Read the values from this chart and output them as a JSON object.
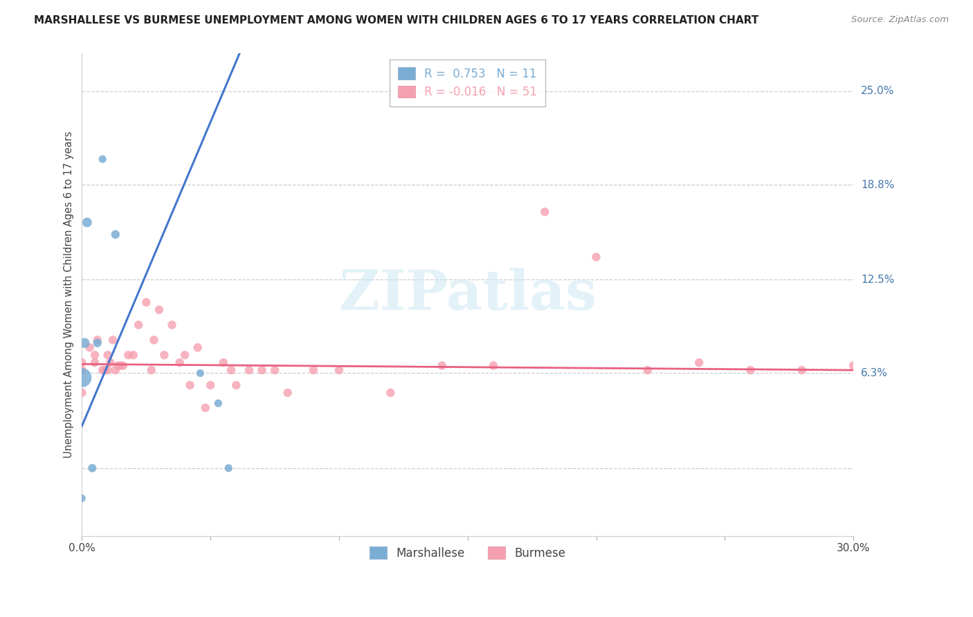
{
  "title": "MARSHALLESE VS BURMESE UNEMPLOYMENT AMONG WOMEN WITH CHILDREN AGES 6 TO 17 YEARS CORRELATION CHART",
  "source": "Source: ZipAtlas.com",
  "ylabel": "Unemployment Among Women with Children Ages 6 to 17 years",
  "xlim": [
    0.0,
    0.3
  ],
  "ylim": [
    -0.045,
    0.275
  ],
  "right_ytick_vals": [
    0.25,
    0.188,
    0.125,
    0.063
  ],
  "right_ytick_labels": [
    "25.0%",
    "18.8%",
    "12.5%",
    "6.3%"
  ],
  "blue_color": "#7aadd4",
  "pink_color": "#f5a0b0",
  "trend_blue_color": "#4477cc",
  "trend_pink_color": "#e86080",
  "marsh_x": [
    0.001,
    0.002,
    0.004,
    0.006,
    0.013,
    0.046,
    0.053,
    0.057,
    0.0,
    0.008,
    0.0
  ],
  "marsh_y": [
    0.083,
    0.163,
    0.0,
    0.083,
    0.155,
    0.063,
    0.043,
    0.0,
    0.06,
    0.205,
    -0.02
  ],
  "marsh_s": [
    110,
    100,
    75,
    80,
    80,
    65,
    65,
    65,
    400,
    65,
    60
  ],
  "bur_x": [
    0.0,
    0.0,
    0.0,
    0.003,
    0.005,
    0.005,
    0.006,
    0.008,
    0.009,
    0.01,
    0.01,
    0.011,
    0.012,
    0.013,
    0.014,
    0.015,
    0.016,
    0.018,
    0.02,
    0.022,
    0.025,
    0.027,
    0.028,
    0.03,
    0.032,
    0.035,
    0.038,
    0.04,
    0.042,
    0.045,
    0.048,
    0.05,
    0.055,
    0.058,
    0.06,
    0.065,
    0.07,
    0.075,
    0.08,
    0.09,
    0.1,
    0.12,
    0.14,
    0.16,
    0.18,
    0.2,
    0.22,
    0.24,
    0.26,
    0.28,
    0.3
  ],
  "bur_y": [
    0.065,
    0.07,
    0.05,
    0.08,
    0.07,
    0.075,
    0.085,
    0.065,
    0.065,
    0.065,
    0.075,
    0.07,
    0.085,
    0.065,
    0.068,
    0.068,
    0.068,
    0.075,
    0.075,
    0.095,
    0.11,
    0.065,
    0.085,
    0.105,
    0.075,
    0.095,
    0.07,
    0.075,
    0.055,
    0.08,
    0.04,
    0.055,
    0.07,
    0.065,
    0.055,
    0.065,
    0.065,
    0.065,
    0.05,
    0.065,
    0.065,
    0.05,
    0.068,
    0.068,
    0.17,
    0.14,
    0.065,
    0.07,
    0.065,
    0.065,
    0.068
  ],
  "bur_s": [
    80,
    80,
    80,
    80,
    80,
    80,
    80,
    80,
    80,
    80,
    80,
    80,
    80,
    80,
    80,
    80,
    80,
    80,
    80,
    80,
    80,
    80,
    80,
    80,
    80,
    80,
    80,
    80,
    80,
    80,
    80,
    80,
    80,
    80,
    80,
    80,
    80,
    80,
    80,
    80,
    80,
    80,
    80,
    80,
    80,
    80,
    80,
    80,
    80,
    80,
    80
  ],
  "blue_trend_x": [
    0.0,
    0.062
  ],
  "blue_trend_y": [
    0.028,
    0.278
  ],
  "pink_trend_x": [
    0.0,
    0.3
  ],
  "pink_trend_y": [
    0.069,
    0.065
  ]
}
